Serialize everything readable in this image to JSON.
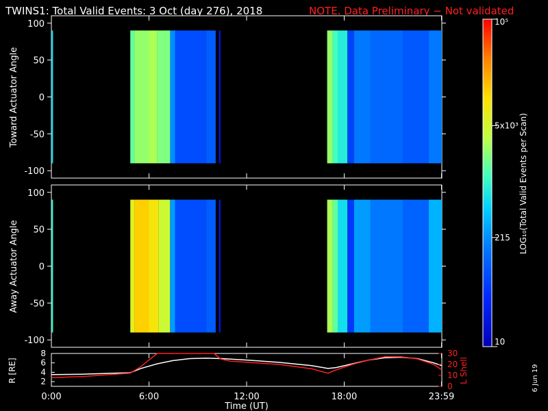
{
  "header": {
    "title": "TWINS1: Total Valid Events:  3 Oct (day 276), 2018",
    "note": "NOTE. Data Preliminary − Not validated",
    "note_color": "#ff2020"
  },
  "side_date": "6 Jun 19",
  "colorbar": {
    "ticks": [
      "10",
      "215",
      "5x10³",
      "10⁵"
    ],
    "label": "LOG₁₀(Total Valid Events per Scan)",
    "range": [
      10,
      100000
    ],
    "scale": "log"
  },
  "x_axis": {
    "label": "Time (UT)",
    "ticks": [
      "0:00",
      "6:00",
      "12:00",
      "18:00",
      "23:59"
    ]
  },
  "chart_data": [
    {
      "type": "heatmap",
      "panel": "toward",
      "ylabel": "Toward Actuator Angle",
      "ylim": [
        -110,
        110
      ],
      "yticks": [
        "100",
        "50",
        "0",
        "-50",
        "-100"
      ],
      "angle_range": [
        -90,
        90
      ],
      "segments": [
        {
          "t": [
            0.0,
            0.1
          ],
          "level": 0.45
        },
        {
          "t": [
            4.85,
            5.1
          ],
          "level": 0.55
        },
        {
          "t": [
            5.1,
            6.0
          ],
          "level": 0.6
        },
        {
          "t": [
            6.0,
            6.5
          ],
          "level": 0.62
        },
        {
          "t": [
            6.5,
            7.3
          ],
          "level": 0.58
        },
        {
          "t": [
            7.3,
            7.6
          ],
          "level": 0.33
        },
        {
          "t": [
            7.6,
            9.5
          ],
          "level": 0.22
        },
        {
          "t": [
            9.5,
            10.1
          ],
          "level": 0.25
        },
        {
          "t": [
            10.3,
            10.4
          ],
          "level": 0.08
        },
        {
          "t": [
            16.95,
            17.3
          ],
          "level": 0.6
        },
        {
          "t": [
            17.3,
            17.6
          ],
          "level": 0.52
        },
        {
          "t": [
            17.6,
            18.2
          ],
          "level": 0.48
        },
        {
          "t": [
            18.2,
            18.6
          ],
          "level": 0.2
        },
        {
          "t": [
            18.6,
            19.6
          ],
          "level": 0.3
        },
        {
          "t": [
            19.6,
            21.6
          ],
          "level": 0.27
        },
        {
          "t": [
            21.6,
            23.2
          ],
          "level": 0.24
        },
        {
          "t": [
            23.2,
            24.0
          ],
          "level": 0.3
        }
      ]
    },
    {
      "type": "heatmap",
      "panel": "away",
      "ylabel": "Away Actuator Angle",
      "ylim": [
        -110,
        110
      ],
      "yticks": [
        "100",
        "50",
        "0",
        "-50",
        "-100"
      ],
      "angle_range": [
        -90,
        90
      ],
      "segments": [
        {
          "t": [
            0.0,
            0.1
          ],
          "level": 0.5
        },
        {
          "t": [
            4.85,
            5.1
          ],
          "level": 0.7
        },
        {
          "t": [
            5.1,
            6.0
          ],
          "level": 0.78
        },
        {
          "t": [
            6.0,
            6.6
          ],
          "level": 0.74
        },
        {
          "t": [
            6.6,
            7.3
          ],
          "level": 0.66
        },
        {
          "t": [
            7.3,
            7.6
          ],
          "level": 0.35
        },
        {
          "t": [
            7.6,
            9.5
          ],
          "level": 0.22
        },
        {
          "t": [
            9.5,
            10.1
          ],
          "level": 0.25
        },
        {
          "t": [
            10.3,
            10.4
          ],
          "level": 0.08
        },
        {
          "t": [
            16.95,
            17.3
          ],
          "level": 0.62
        },
        {
          "t": [
            17.3,
            17.6
          ],
          "level": 0.55
        },
        {
          "t": [
            17.6,
            18.2
          ],
          "level": 0.45
        },
        {
          "t": [
            18.2,
            18.6
          ],
          "level": 0.18
        },
        {
          "t": [
            18.6,
            19.6
          ],
          "level": 0.35
        },
        {
          "t": [
            19.6,
            21.6
          ],
          "level": 0.3
        },
        {
          "t": [
            21.6,
            23.2
          ],
          "level": 0.26
        },
        {
          "t": [
            23.2,
            24.0
          ],
          "level": 0.38
        }
      ]
    },
    {
      "type": "line",
      "panel": "orbit",
      "ylabel": "R [RE]",
      "y2label": "L Shell",
      "ylim": [
        1,
        8
      ],
      "y2lim": [
        0,
        30
      ],
      "yticks": [
        "8",
        "6",
        "4",
        "2"
      ],
      "y2ticks": [
        "30",
        "20",
        "10",
        "0"
      ],
      "series": [
        {
          "name": "R",
          "color": "#ffffff",
          "axis": "left",
          "x": [
            0,
            2,
            4.85,
            5.5,
            6.5,
            7.5,
            8.5,
            9.5,
            10.5,
            12,
            14,
            16,
            17,
            17.5,
            18.5,
            19.5,
            20.5,
            21.5,
            22.5,
            23.5,
            24
          ],
          "y": [
            3.5,
            3.6,
            3.9,
            4.8,
            5.8,
            6.5,
            6.9,
            7.0,
            6.9,
            6.6,
            6.1,
            5.4,
            4.8,
            5.0,
            5.8,
            6.6,
            7.1,
            7.2,
            6.9,
            6.0,
            5.4
          ]
        },
        {
          "name": "L Shell",
          "color": "#ff2020",
          "axis": "right",
          "x": [
            0,
            2,
            4.85,
            5.5,
            6.5,
            10.0,
            10.4,
            11,
            12,
            14,
            16,
            17,
            17.5,
            18.5,
            19.5,
            20.5,
            21.5,
            22.5,
            23.5,
            24
          ],
          "y": [
            8,
            9,
            12,
            18,
            30,
            30,
            25,
            23,
            22,
            20,
            16,
            12,
            15,
            20,
            24,
            27,
            27,
            25,
            20,
            15
          ]
        }
      ]
    }
  ]
}
